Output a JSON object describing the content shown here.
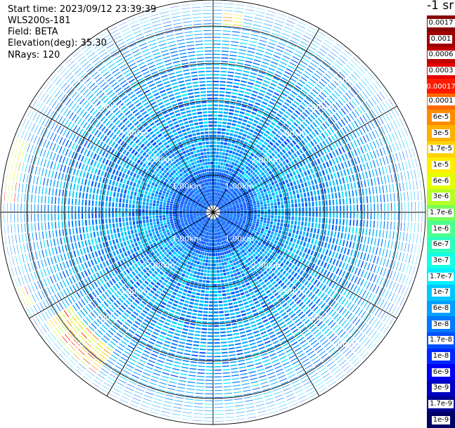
{
  "info": {
    "start_time": "Start time: 2023/09/12 23:39:39",
    "device": "WLS200s-181",
    "field": "Field: BETA",
    "elevation": "Elevation(deg): 35.30",
    "nrays": "NRays: 120"
  },
  "colorbar": {
    "unit_title": "-1 sr",
    "upper_segments": [
      {
        "label": "0.0017",
        "color": "#8b0000"
      },
      {
        "label": "0.001",
        "color": "#a00000"
      },
      {
        "label": "0.0006",
        "color": "#c00000"
      },
      {
        "label": "0.0003",
        "color": "#e60000"
      },
      {
        "label": "0.00017",
        "color": "#ff1a00"
      }
    ],
    "lower_segments": [
      {
        "label": "0.0001",
        "color": "#ff6a00"
      },
      {
        "label": "6e-5",
        "color": "#ff8c00"
      },
      {
        "label": "3e-5",
        "color": "#ffb000"
      },
      {
        "label": "1.7e-5",
        "color": "#ffd200"
      },
      {
        "label": "1e-5",
        "color": "#ffee00"
      },
      {
        "label": "6e-6",
        "color": "#e6ff00"
      },
      {
        "label": "3e-6",
        "color": "#b4ff28"
      },
      {
        "label": "1.7e-6",
        "color": "#78ff5a"
      },
      {
        "label": "1e-6",
        "color": "#4cff8c"
      },
      {
        "label": "6e-7",
        "color": "#2cffbe"
      },
      {
        "label": "3e-7",
        "color": "#14ffe6"
      },
      {
        "label": "1.7e-7",
        "color": "#00f0ff"
      },
      {
        "label": "1e-7",
        "color": "#00c8ff"
      },
      {
        "label": "6e-8",
        "color": "#00a0ff"
      },
      {
        "label": "3e-8",
        "color": "#0078ff"
      },
      {
        "label": "1.7e-8",
        "color": "#0050ff"
      },
      {
        "label": "1e-8",
        "color": "#0028ff"
      },
      {
        "label": "6e-9",
        "color": "#0000f0"
      },
      {
        "label": "3e-9",
        "color": "#0000c0"
      },
      {
        "label": "1.7e-9",
        "color": "#000090"
      },
      {
        "label": "1e-9",
        "color": "#000064"
      }
    ]
  },
  "chart_data": {
    "type": "heatmap",
    "subtype": "ppi-polar",
    "field": "BETA",
    "elevation_deg": 35.3,
    "n_rays": 120,
    "range_rings_km": [
      1,
      2,
      3,
      4,
      5
    ],
    "range_labels": [
      "1.00km",
      "2.00km",
      "3.00km",
      "4.00km",
      "5.00km"
    ],
    "max_range_km": 5.7,
    "azimuth_spokes_deg": [
      0,
      30,
      60,
      90,
      120,
      150,
      180,
      210,
      240,
      270,
      300,
      330
    ],
    "background_level": "1e-8 to 1.7e-7",
    "high_backscatter_regions": [
      {
        "azimuth_deg": [
          215,
          238
        ],
        "range_km": [
          4.6,
          5.4
        ],
        "max_value": "1e-4"
      },
      {
        "azimuth_deg": [
          272,
          292
        ],
        "range_km": [
          5.3,
          5.7
        ],
        "max_value": "1e-4"
      },
      {
        "azimuth_deg": [
          244,
          250
        ],
        "range_km": [
          5.4,
          5.7
        ],
        "max_value": "1.7e-5"
      },
      {
        "azimuth_deg": [
          4,
          8
        ],
        "range_km": [
          5.1,
          5.4
        ],
        "max_value": "1.7e-5"
      }
    ],
    "grid": true
  }
}
